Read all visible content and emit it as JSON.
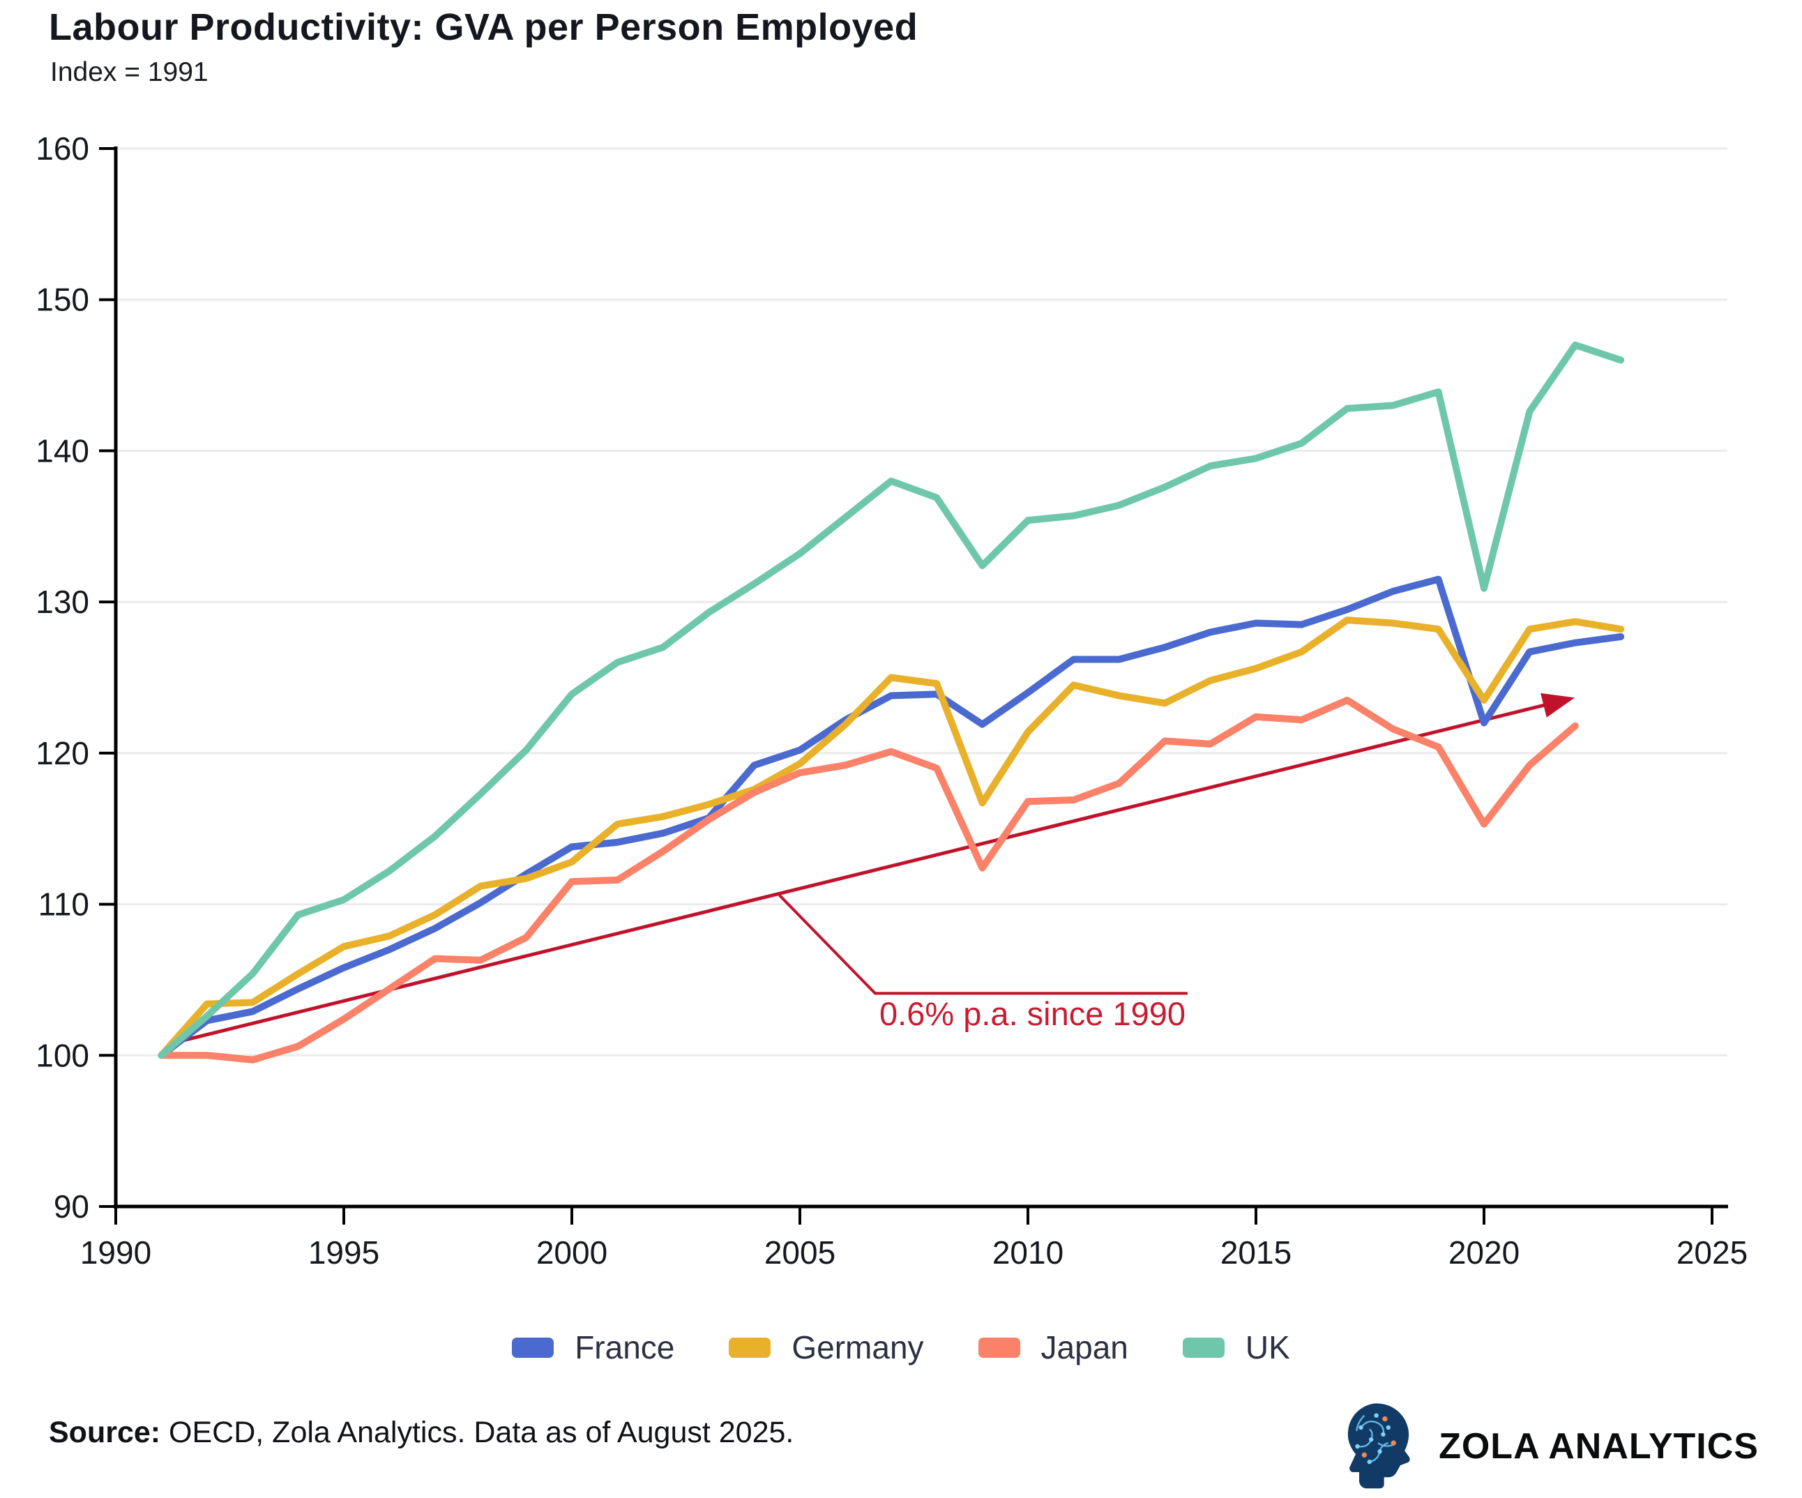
{
  "header": {
    "title": "Labour Productivity: GVA per Person Employed",
    "subtitle": "Index = 1991"
  },
  "chart_data": {
    "type": "line",
    "x": [
      1991,
      1992,
      1993,
      1994,
      1995,
      1996,
      1997,
      1998,
      1999,
      2000,
      2001,
      2002,
      2003,
      2004,
      2005,
      2006,
      2007,
      2008,
      2009,
      2010,
      2011,
      2012,
      2013,
      2014,
      2015,
      2016,
      2017,
      2018,
      2019,
      2020,
      2021,
      2022,
      2023
    ],
    "series": [
      {
        "name": "France",
        "color": "#4a6ad0",
        "values": [
          100,
          102.3,
          102.9,
          104.4,
          105.8,
          107,
          108.4,
          110.1,
          112,
          113.8,
          114.1,
          114.7,
          115.7,
          119.2,
          120.2,
          122.2,
          123.8,
          123.9,
          121.9,
          124,
          126.2,
          126.2,
          127,
          128,
          128.6,
          128.5,
          129.5,
          130.7,
          131.5,
          122,
          126.7,
          127.3,
          127.7
        ]
      },
      {
        "name": "Germany",
        "color": "#e9b02a",
        "values": [
          100,
          103.4,
          103.5,
          105.4,
          107.2,
          107.9,
          109.3,
          111.2,
          111.7,
          112.8,
          115.3,
          115.8,
          116.6,
          117.6,
          119.3,
          121.9,
          125,
          124.6,
          116.7,
          121.4,
          124.5,
          123.8,
          123.3,
          124.8,
          125.6,
          126.7,
          128.8,
          128.6,
          128.2,
          123.5,
          128.2,
          128.7,
          128.2
        ]
      },
      {
        "name": "Japan",
        "color": "#fb8168",
        "values": [
          100,
          100,
          99.7,
          100.6,
          102.4,
          104.4,
          106.4,
          106.3,
          107.8,
          111.5,
          111.6,
          113.5,
          115.6,
          117.4,
          118.7,
          119.2,
          120.1,
          119,
          112.4,
          116.8,
          116.9,
          118,
          120.8,
          120.6,
          122.4,
          122.2,
          123.5,
          121.6,
          120.4,
          115.3,
          119.2,
          121.8,
          null
        ]
      },
      {
        "name": "UK",
        "color": "#6fc7ab",
        "values": [
          100,
          102.6,
          105.4,
          109.3,
          110.3,
          112.2,
          114.5,
          117.3,
          120.2,
          123.9,
          126,
          127,
          129.3,
          131.2,
          133.2,
          135.6,
          138,
          136.9,
          132.4,
          135.4,
          135.7,
          136.4,
          137.6,
          139,
          139.5,
          140.5,
          142.8,
          143,
          143.9,
          130.9,
          142.6,
          147,
          146
        ]
      }
    ],
    "xlim": [
      1990,
      2025
    ],
    "ylim": [
      90,
      160
    ],
    "x_ticks": [
      1990,
      1995,
      2000,
      2005,
      2010,
      2015,
      2020,
      2025
    ],
    "y_ticks": [
      90,
      100,
      110,
      120,
      130,
      140,
      150,
      160
    ],
    "grid": "horizontal",
    "legend_position": "bottom",
    "annotation": {
      "text": "0.6% p.a. since 1990",
      "line_color": "#c1122c",
      "text_color": "#ca1b30",
      "trend_start": {
        "year": 1991.5,
        "value": 101.0
      },
      "trend_end": {
        "year": 2021.9,
        "value": 123.6
      },
      "leader": [
        {
          "year": 2004.55,
          "value": 110.6
        },
        {
          "year": 2006.65,
          "value": 104.1
        },
        {
          "year": 2013.5,
          "value": 104.1
        }
      ],
      "label_center": {
        "year": 2010.1,
        "value": 102.0
      }
    }
  },
  "footer": {
    "source_label": "Source:",
    "source_text": " OECD, Zola Analytics. Data as of August 2025.",
    "brand": "ZOLA ANALYTICS"
  }
}
